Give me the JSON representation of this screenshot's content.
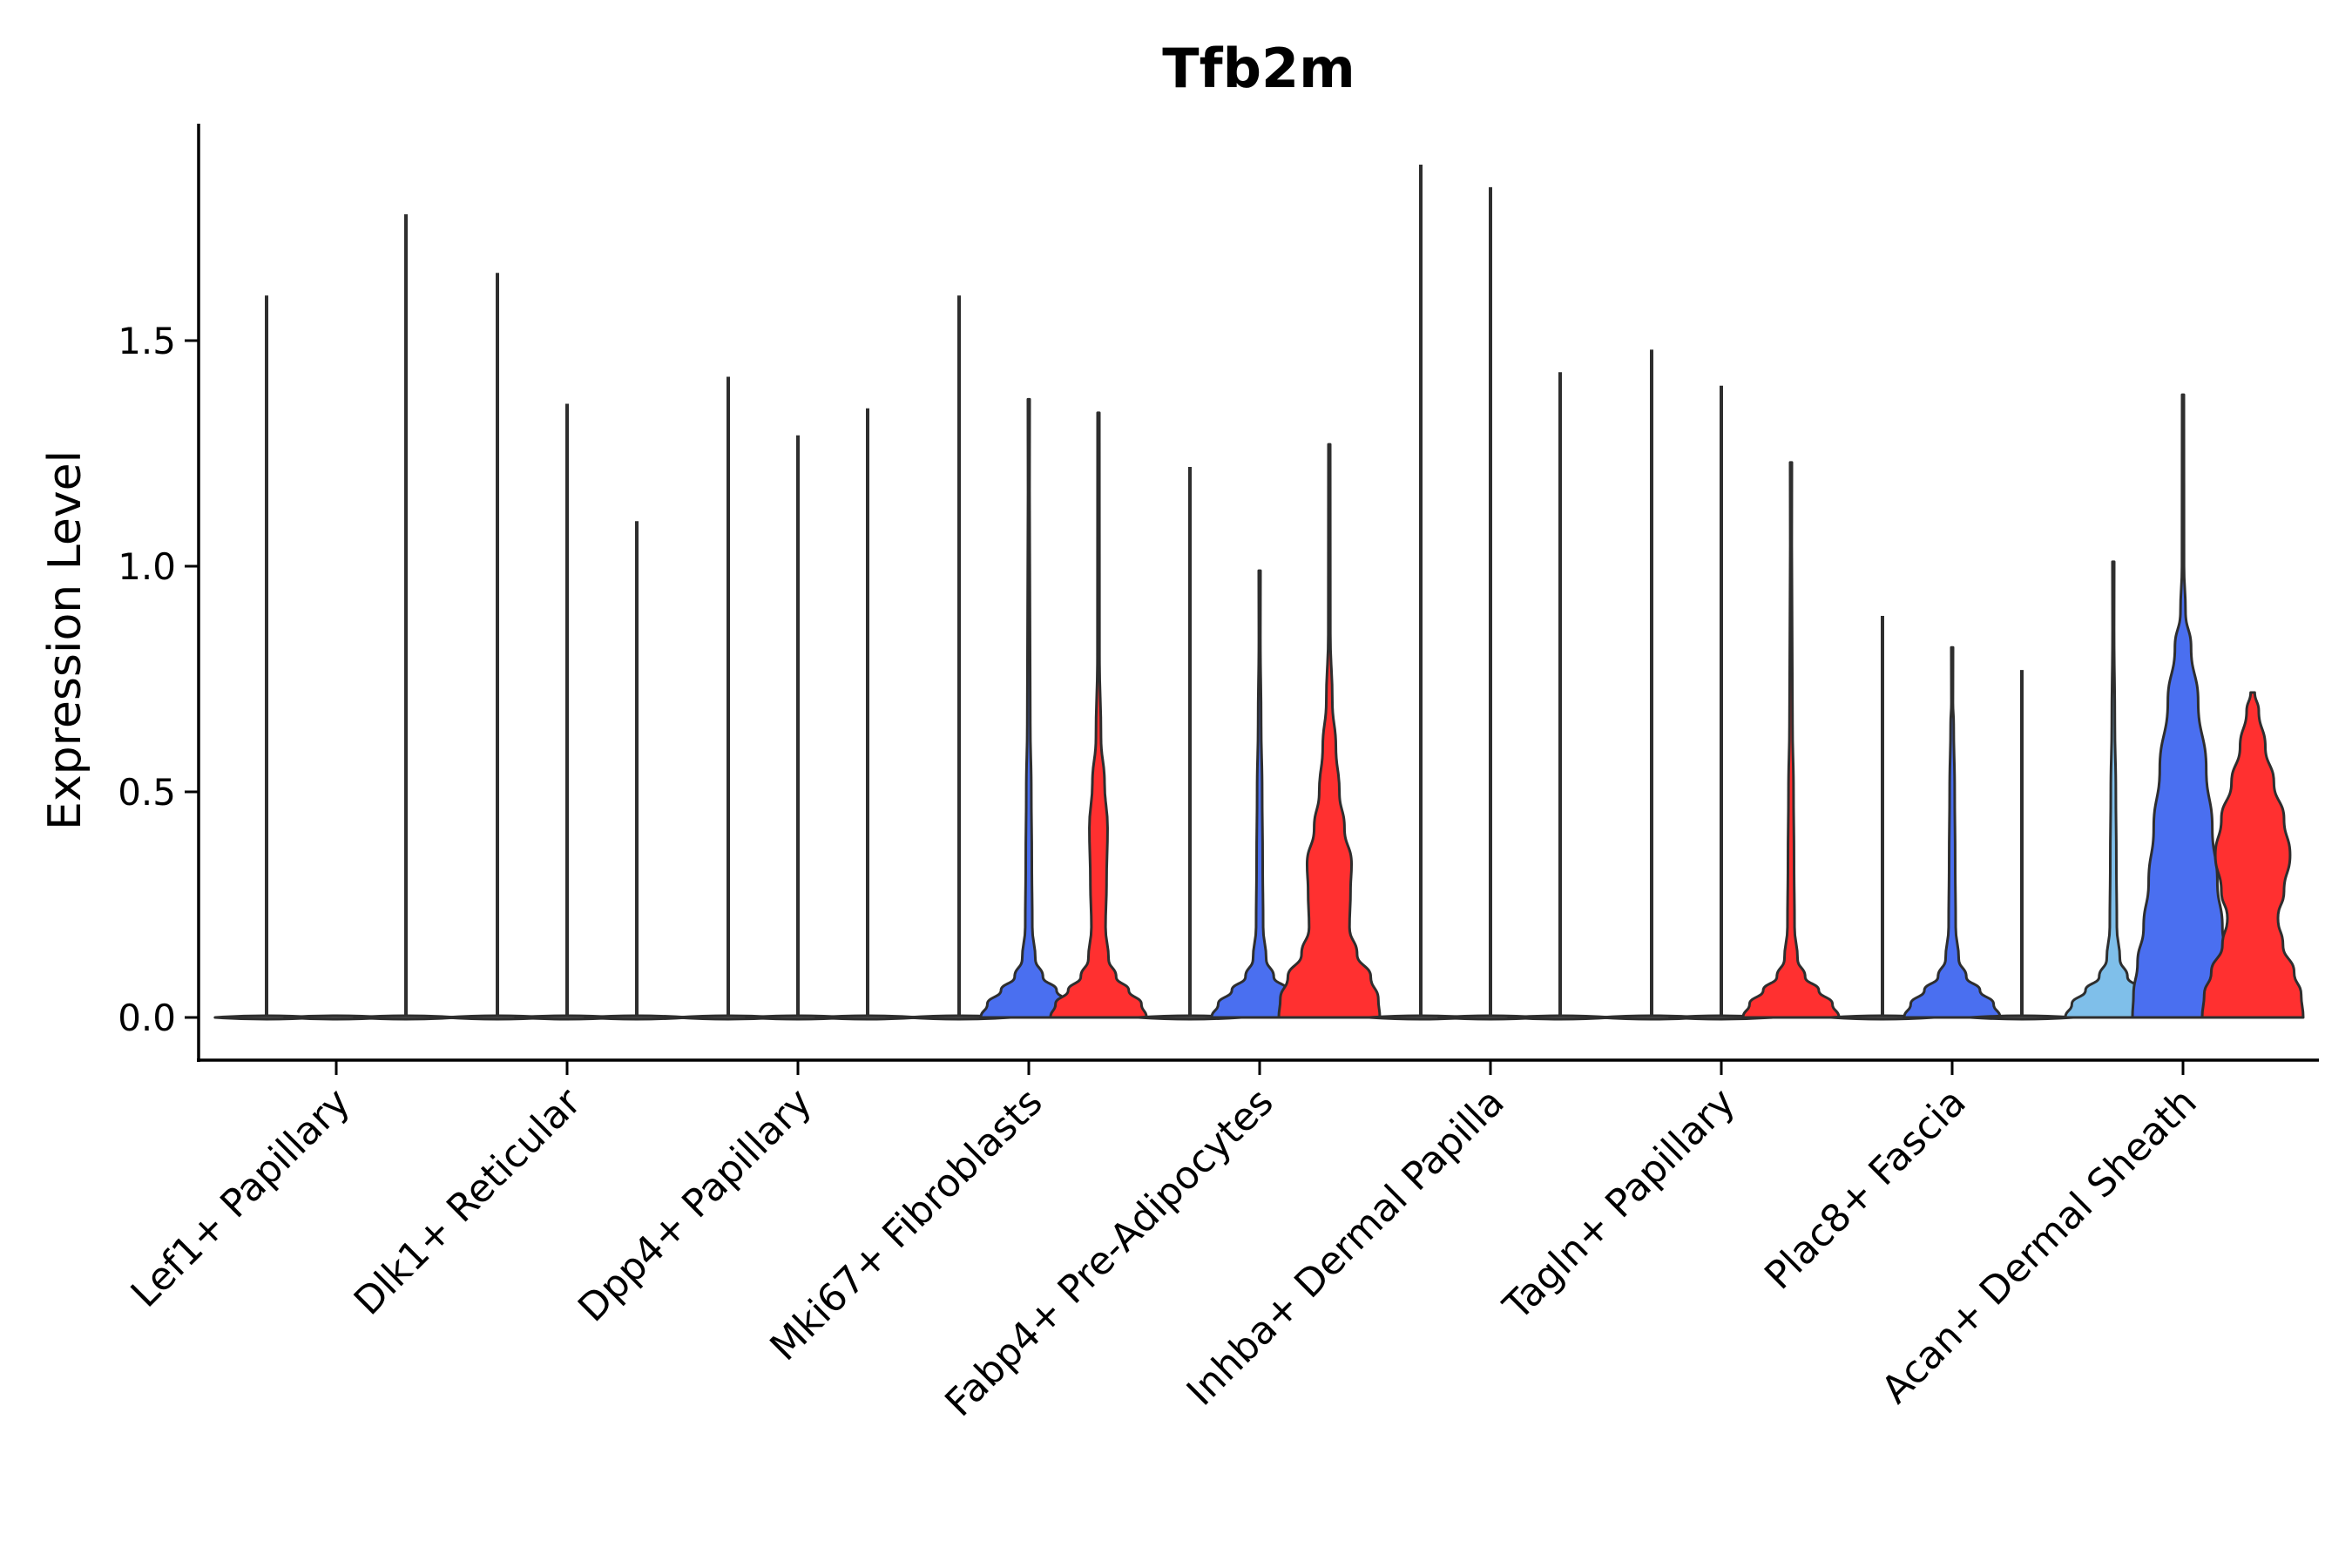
{
  "chart_data": {
    "type": "violin",
    "title": "Tfb2m",
    "xlabel": "",
    "ylabel": "Expression Level",
    "ylim": [
      -0.1,
      2.0
    ],
    "yticks": [
      "0.0",
      "0.5",
      "1.0",
      "1.5"
    ],
    "categories": [
      "Lef1+ Papillary",
      "Dlk1+ Reticular",
      "Dpp4+ Papillary",
      "Mki67+ Fibroblasts",
      "Fabp4+ Pre-Adipocytes",
      "Inhba+ Dermal Papilla",
      "Tagln+ Papillary",
      "Plac8+ Fascia",
      "Acan+ Dermal Sheath"
    ],
    "split_colors": [
      "#7fbfea",
      "#4a6ff0",
      "#ff3030"
    ],
    "groups": [
      {
        "category": "Lef1+ Papillary",
        "violins": [
          {
            "offset": -1,
            "color": "#7fbfea",
            "max": 1.6,
            "shape": "flat"
          },
          {
            "offset": 0,
            "color": "#4a6ff0",
            "max": 0.0,
            "shape": "flat"
          },
          {
            "offset": 1,
            "color": "#ff3030",
            "max": 1.78,
            "shape": "flat"
          }
        ]
      },
      {
        "category": "Dlk1+ Reticular",
        "violins": [
          {
            "offset": -1,
            "color": "#7fbfea",
            "max": 1.65,
            "shape": "flat"
          },
          {
            "offset": 0,
            "color": "#4a6ff0",
            "max": 1.36,
            "shape": "flat"
          },
          {
            "offset": 1,
            "color": "#ff3030",
            "max": 1.1,
            "shape": "flat"
          }
        ]
      },
      {
        "category": "Dpp4+ Papillary",
        "violins": [
          {
            "offset": -1,
            "color": "#7fbfea",
            "max": 1.42,
            "shape": "flat"
          },
          {
            "offset": 0,
            "color": "#4a6ff0",
            "max": 1.29,
            "shape": "flat"
          },
          {
            "offset": 1,
            "color": "#ff3030",
            "max": 1.35,
            "shape": "flat"
          }
        ]
      },
      {
        "category": "Mki67+ Fibroblasts",
        "violins": [
          {
            "offset": -1,
            "color": "#7fbfea",
            "max": 1.6,
            "shape": "flat"
          },
          {
            "offset": 0,
            "color": "#4a6ff0",
            "max": 1.37,
            "shape": "low"
          },
          {
            "offset": 1,
            "color": "#ff3030",
            "max": 1.34,
            "shape": "low-bulge"
          }
        ]
      },
      {
        "category": "Fabp4+ Pre-Adipocytes",
        "violins": [
          {
            "offset": -1,
            "color": "#7fbfea",
            "max": 1.22,
            "shape": "flat"
          },
          {
            "offset": 0,
            "color": "#4a6ff0",
            "max": 0.99,
            "shape": "low"
          },
          {
            "offset": 1,
            "color": "#ff3030",
            "max": 1.27,
            "shape": "wide"
          }
        ]
      },
      {
        "category": "Inhba+ Dermal Papilla",
        "violins": [
          {
            "offset": -1,
            "color": "#7fbfea",
            "max": 1.89,
            "shape": "flat"
          },
          {
            "offset": 0,
            "color": "#4a6ff0",
            "max": 1.84,
            "shape": "flat"
          },
          {
            "offset": 1,
            "color": "#ff3030",
            "max": 1.43,
            "shape": "flat"
          }
        ]
      },
      {
        "category": "Tagln+ Papillary",
        "violins": [
          {
            "offset": -1,
            "color": "#7fbfea",
            "max": 1.48,
            "shape": "flat"
          },
          {
            "offset": 0,
            "color": "#4a6ff0",
            "max": 1.4,
            "shape": "flat"
          },
          {
            "offset": 1,
            "color": "#ff3030",
            "max": 1.23,
            "shape": "low"
          }
        ]
      },
      {
        "category": "Plac8+ Fascia",
        "violins": [
          {
            "offset": -1,
            "color": "#7fbfea",
            "max": 0.89,
            "shape": "flat"
          },
          {
            "offset": 0,
            "color": "#4a6ff0",
            "max": 0.82,
            "shape": "low"
          },
          {
            "offset": 1,
            "color": "#ff3030",
            "max": 0.77,
            "shape": "flat"
          }
        ]
      },
      {
        "category": "Acan+ Dermal Sheath",
        "violins": [
          {
            "offset": -1,
            "color": "#7fbfea",
            "max": 1.01,
            "shape": "low"
          },
          {
            "offset": 0,
            "color": "#4a6ff0",
            "max": 1.38,
            "shape": "broad"
          },
          {
            "offset": 1,
            "color": "#ff3030",
            "max": 0.72,
            "shape": "broad-red"
          }
        ]
      }
    ]
  }
}
